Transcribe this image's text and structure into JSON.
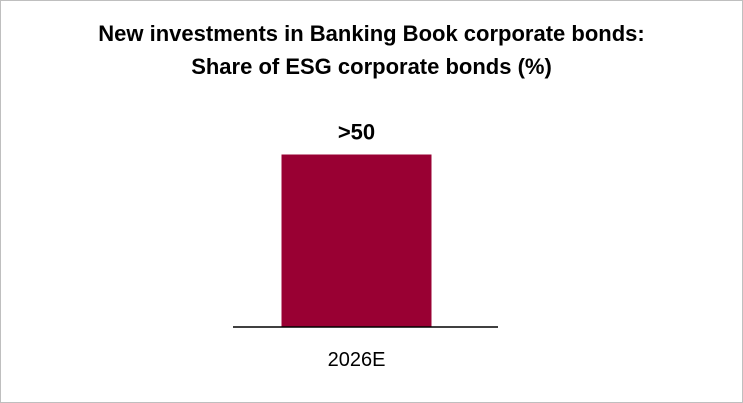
{
  "chart_data": {
    "type": "bar",
    "title_lines": [
      "New investments in Banking Book corporate bonds:",
      "Share of ESG corporate bonds (%)"
    ],
    "categories": [
      "2026E"
    ],
    "values": [
      50
    ],
    "data_labels": [
      ">50"
    ],
    "ylim": [
      0,
      60
    ],
    "grid": false,
    "legend": "none",
    "colors": {
      "bar": "#990033",
      "axis": "#000000",
      "border": "#bfbfbf"
    }
  }
}
